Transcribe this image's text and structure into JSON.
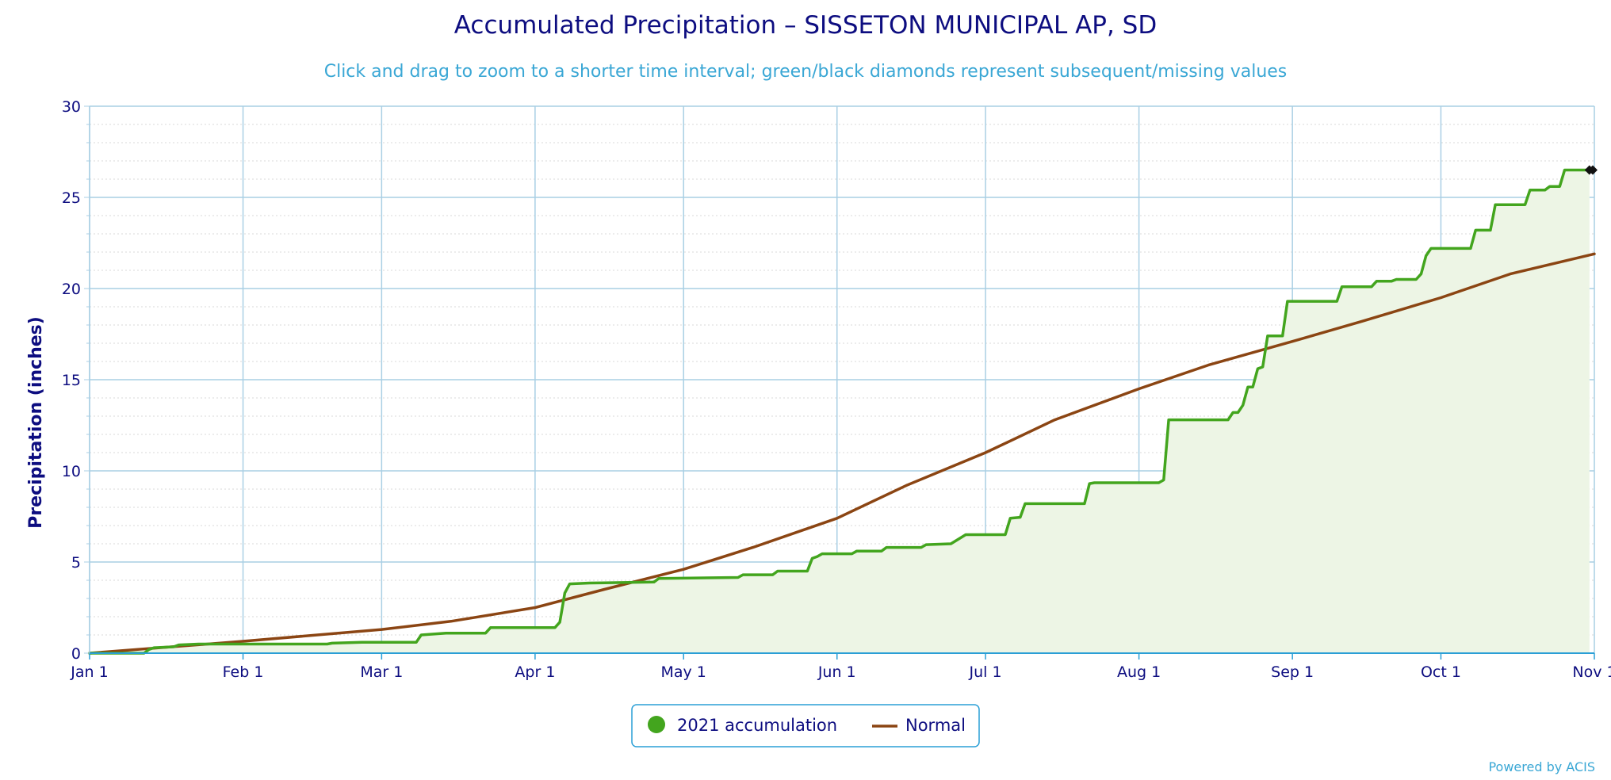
{
  "chart_data": {
    "type": "area",
    "title": "Accumulated Precipitation – SISSETON MUNICIPAL AP, SD",
    "subtitle": "Click and drag to zoom to a shorter time interval; green/black diamonds represent subsequent/missing values",
    "ylabel": "Precipitation (inches)",
    "xlabel": "",
    "x_axis_type": "date",
    "x_range": [
      "2021-01-01",
      "2021-11-01"
    ],
    "ylim": [
      0,
      30
    ],
    "y_ticks": [
      "0",
      "5",
      "10",
      "15",
      "20",
      "25",
      "30"
    ],
    "x_ticks": [
      {
        "date": "2021-01-01",
        "label": "Jan 1"
      },
      {
        "date": "2021-02-01",
        "label": "Feb 1"
      },
      {
        "date": "2021-03-01",
        "label": "Mar 1"
      },
      {
        "date": "2021-04-01",
        "label": "Apr 1"
      },
      {
        "date": "2021-05-01",
        "label": "May 1"
      },
      {
        "date": "2021-06-01",
        "label": "Jun 1"
      },
      {
        "date": "2021-07-01",
        "label": "Jul 1"
      },
      {
        "date": "2021-08-01",
        "label": "Aug 1"
      },
      {
        "date": "2021-09-01",
        "label": "Sep 1"
      },
      {
        "date": "2021-10-01",
        "label": "Oct 1"
      },
      {
        "date": "2021-11-01",
        "label": "Nov 1"
      }
    ],
    "grid": true,
    "legend_position": "bottom-center",
    "series": [
      {
        "name": "2021 accumulation",
        "color": "#43a51e",
        "fill": "#edf5e5",
        "step": true,
        "points": [
          [
            "2021-01-01",
            0.0
          ],
          [
            "2021-01-12",
            0.0
          ],
          [
            "2021-01-13",
            0.2
          ],
          [
            "2021-01-14",
            0.3
          ],
          [
            "2021-01-18",
            0.35
          ],
          [
            "2021-01-19",
            0.45
          ],
          [
            "2021-01-23",
            0.5
          ],
          [
            "2021-02-18",
            0.5
          ],
          [
            "2021-02-19",
            0.55
          ],
          [
            "2021-02-25",
            0.6
          ],
          [
            "2021-03-08",
            0.6
          ],
          [
            "2021-03-09",
            1.0
          ],
          [
            "2021-03-14",
            1.1
          ],
          [
            "2021-03-22",
            1.1
          ],
          [
            "2021-03-23",
            1.4
          ],
          [
            "2021-04-05",
            1.4
          ],
          [
            "2021-04-06",
            1.7
          ],
          [
            "2021-04-07",
            3.3
          ],
          [
            "2021-04-08",
            3.8
          ],
          [
            "2021-04-12",
            3.85
          ],
          [
            "2021-04-25",
            3.9
          ],
          [
            "2021-04-26",
            4.1
          ],
          [
            "2021-05-12",
            4.15
          ],
          [
            "2021-05-13",
            4.3
          ],
          [
            "2021-05-19",
            4.3
          ],
          [
            "2021-05-20",
            4.5
          ],
          [
            "2021-05-26",
            4.5
          ],
          [
            "2021-05-27",
            5.2
          ],
          [
            "2021-05-28",
            5.3
          ],
          [
            "2021-05-29",
            5.45
          ],
          [
            "2021-06-04",
            5.45
          ],
          [
            "2021-06-05",
            5.6
          ],
          [
            "2021-06-10",
            5.6
          ],
          [
            "2021-06-11",
            5.8
          ],
          [
            "2021-06-18",
            5.8
          ],
          [
            "2021-06-19",
            5.95
          ],
          [
            "2021-06-24",
            6.0
          ],
          [
            "2021-06-27",
            6.5
          ],
          [
            "2021-07-05",
            6.5
          ],
          [
            "2021-07-06",
            7.4
          ],
          [
            "2021-07-08",
            7.45
          ],
          [
            "2021-07-09",
            8.2
          ],
          [
            "2021-07-21",
            8.2
          ],
          [
            "2021-07-22",
            9.3
          ],
          [
            "2021-07-23",
            9.35
          ],
          [
            "2021-08-05",
            9.35
          ],
          [
            "2021-08-06",
            9.5
          ],
          [
            "2021-08-07",
            12.8
          ],
          [
            "2021-08-19",
            12.8
          ],
          [
            "2021-08-20",
            13.2
          ],
          [
            "2021-08-21",
            13.2
          ],
          [
            "2021-08-22",
            13.6
          ],
          [
            "2021-08-23",
            14.6
          ],
          [
            "2021-08-24",
            14.6
          ],
          [
            "2021-08-25",
            15.6
          ],
          [
            "2021-08-26",
            15.7
          ],
          [
            "2021-08-27",
            17.4
          ],
          [
            "2021-08-30",
            17.4
          ],
          [
            "2021-08-31",
            19.3
          ],
          [
            "2021-09-10",
            19.3
          ],
          [
            "2021-09-11",
            20.1
          ],
          [
            "2021-09-17",
            20.1
          ],
          [
            "2021-09-18",
            20.4
          ],
          [
            "2021-09-21",
            20.4
          ],
          [
            "2021-09-22",
            20.5
          ],
          [
            "2021-09-26",
            20.5
          ],
          [
            "2021-09-27",
            20.8
          ],
          [
            "2021-09-28",
            21.8
          ],
          [
            "2021-09-29",
            22.2
          ],
          [
            "2021-10-07",
            22.2
          ],
          [
            "2021-10-08",
            23.2
          ],
          [
            "2021-10-11",
            23.2
          ],
          [
            "2021-10-12",
            24.6
          ],
          [
            "2021-10-18",
            24.6
          ],
          [
            "2021-10-19",
            25.4
          ],
          [
            "2021-10-22",
            25.4
          ],
          [
            "2021-10-23",
            25.6
          ],
          [
            "2021-10-25",
            25.6
          ],
          [
            "2021-10-26",
            26.5
          ],
          [
            "2021-10-31",
            26.5
          ]
        ],
        "markers": [
          {
            "date": "2021-10-31",
            "value": 26.5,
            "color": "#111111"
          },
          {
            "date": "2021-11-01",
            "value": 26.5,
            "color": "#111111"
          }
        ]
      },
      {
        "name": "Normal",
        "color": "#8b4513",
        "points": [
          [
            "2021-01-01",
            0.0
          ],
          [
            "2021-02-01",
            0.65
          ],
          [
            "2021-03-01",
            1.3
          ],
          [
            "2021-03-15",
            1.75
          ],
          [
            "2021-04-01",
            2.5
          ],
          [
            "2021-04-15",
            3.5
          ],
          [
            "2021-05-01",
            4.6
          ],
          [
            "2021-05-15",
            5.8
          ],
          [
            "2021-06-01",
            7.4
          ],
          [
            "2021-06-15",
            9.2
          ],
          [
            "2021-07-01",
            11.0
          ],
          [
            "2021-07-15",
            12.8
          ],
          [
            "2021-08-01",
            14.5
          ],
          [
            "2021-08-15",
            15.8
          ],
          [
            "2021-09-01",
            17.1
          ],
          [
            "2021-09-15",
            18.2
          ],
          [
            "2021-10-01",
            19.5
          ],
          [
            "2021-10-15",
            20.8
          ],
          [
            "2021-11-01",
            21.9
          ]
        ]
      }
    ]
  },
  "credit": "Powered by ACIS"
}
